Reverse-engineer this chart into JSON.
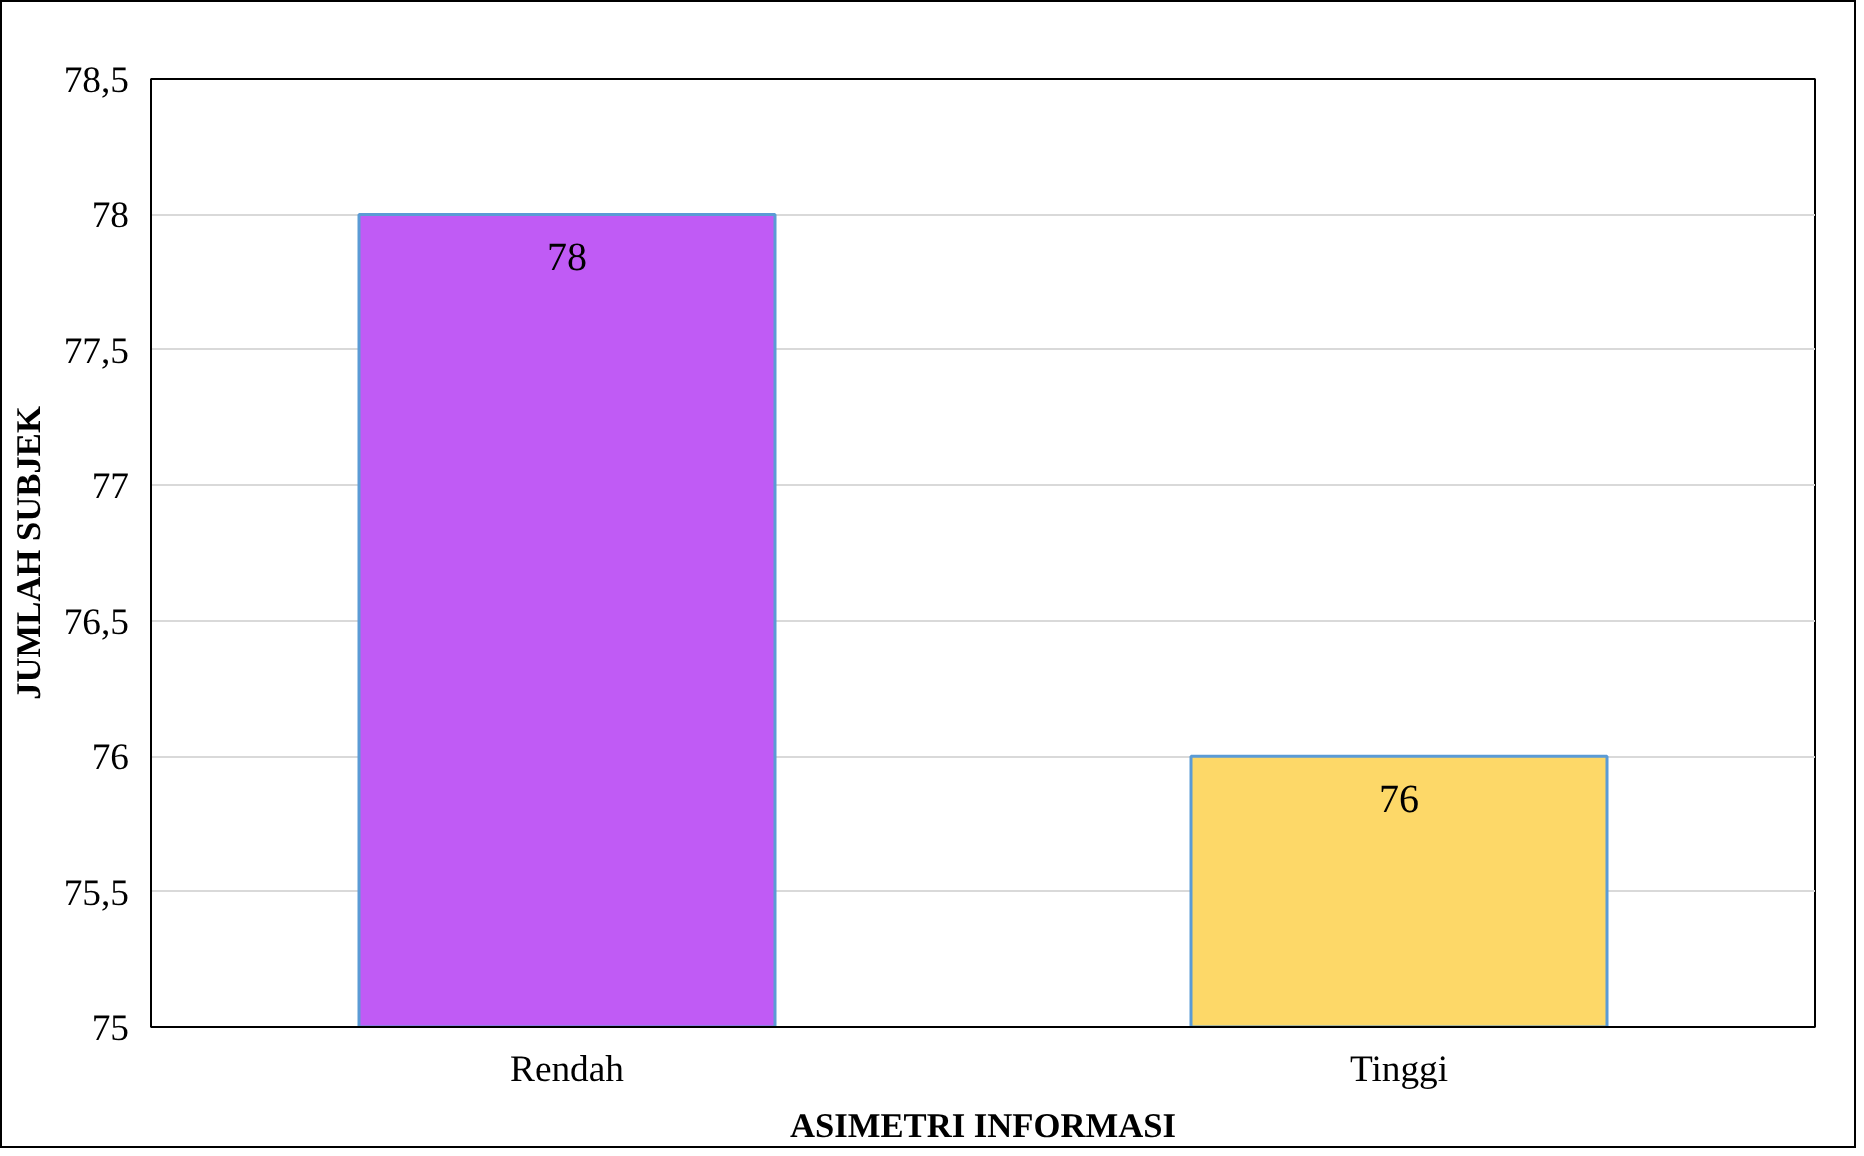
{
  "chart_data": {
    "type": "bar",
    "xlabel": "ASIMETRI INFORMASI",
    "ylabel": "JUMLAH SUBJEK",
    "categories": [
      "Rendah",
      "Tinggi"
    ],
    "values": [
      78,
      76
    ],
    "colors": [
      "#c05bf5",
      "#fdd868"
    ],
    "ylim": [
      75,
      78.5
    ],
    "yticks": [
      75,
      {
        "value": 75.5,
        "label": "75,5"
      },
      76,
      {
        "value": 76.5,
        "label": "76,5"
      },
      77,
      {
        "value": 77.5,
        "label": "77,5"
      },
      78,
      {
        "value": 78.5,
        "label": "78,5"
      }
    ],
    "grid": "y",
    "data_labels": true
  }
}
